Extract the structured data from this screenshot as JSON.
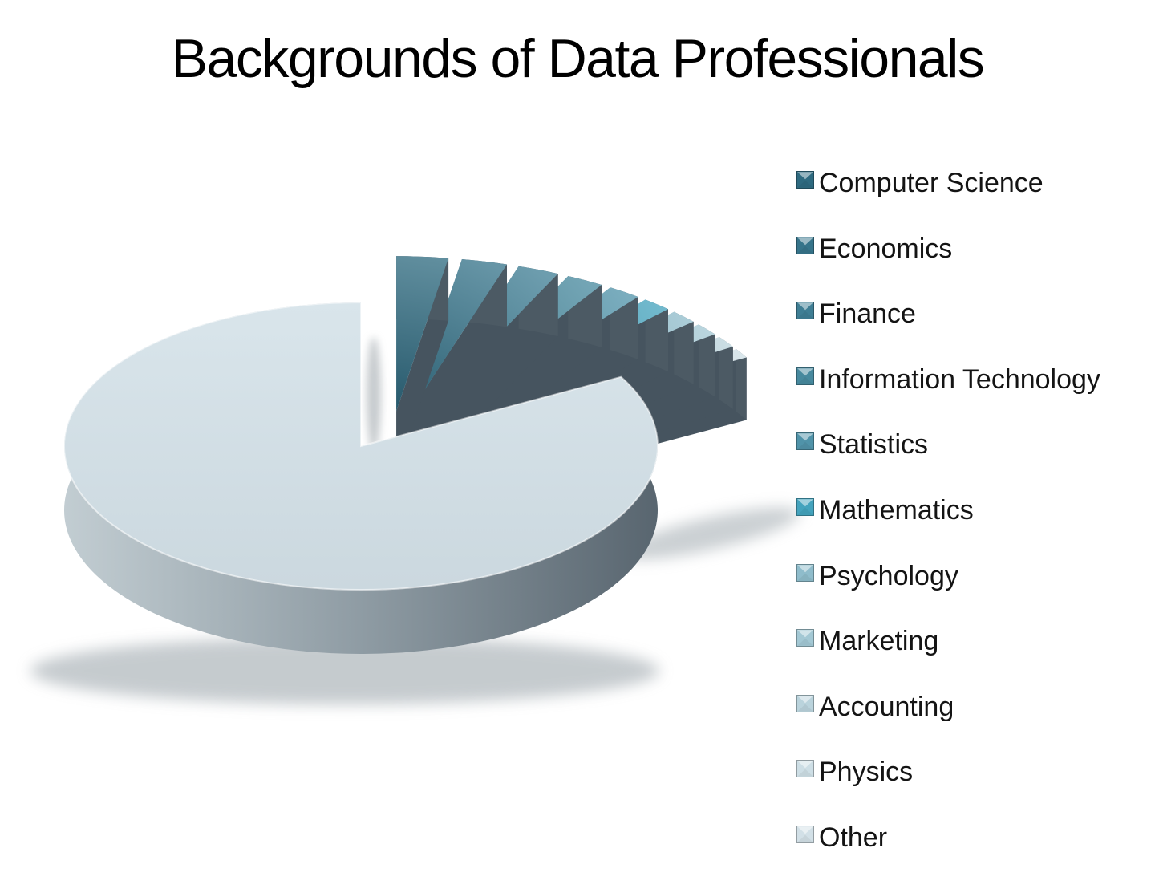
{
  "chart_data": {
    "type": "pie",
    "style": "3d-exploded-pie",
    "title": "Backgrounds of Data Professionals",
    "legend_position": "right",
    "categories": [
      "Computer Science",
      "Economics",
      "Finance",
      "Information Technology",
      "Statistics",
      "Mathematics",
      "Psychology",
      "Marketing",
      "Accounting",
      "Physics",
      "Other"
    ],
    "values": [
      2.6,
      2.3,
      2.1,
      1.9,
      1.7,
      1.5,
      1.4,
      1.3,
      1.2,
      1.0,
      83.0
    ],
    "unit": "percent",
    "values_are_estimates": true,
    "colors": [
      "#2E6A80",
      "#36748A",
      "#3F7E94",
      "#47899E",
      "#5093A9",
      "#44A3BD",
      "#8FBCCB",
      "#A3C8D4",
      "#BAD3DC",
      "#CDDEE5",
      "#D2E0E7"
    ],
    "side_color": "#46545F",
    "exploded": [
      true,
      true,
      true,
      true,
      true,
      true,
      true,
      true,
      true,
      true,
      false
    ]
  }
}
